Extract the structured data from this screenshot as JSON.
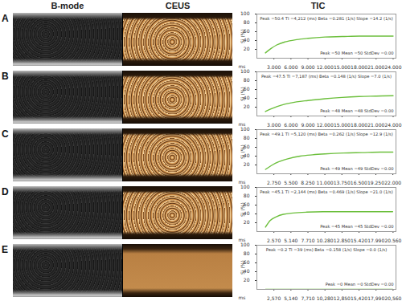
{
  "figure": {
    "columns": [
      "B-mode",
      "CEUS",
      "TIC"
    ],
    "panels": [
      "A",
      "B",
      "C",
      "D",
      "E"
    ]
  },
  "chart_data": [
    {
      "type": "line",
      "title": "Peak =50.4 TI =4,212 (ms) Beta =0.281 (1/s) Slope =14.2 (1/s)",
      "annotations": [
        "Peak =50 Mean =50 StdDev =0.00"
      ],
      "x_label": "ms",
      "y_label": "Si (%)",
      "x": [
        1500,
        2500,
        3500,
        5000,
        7000,
        9000,
        12000,
        15000,
        18000,
        21000,
        24000
      ],
      "series": [
        {
          "name": "TIC",
          "color": "#6cbf3c",
          "values": [
            12,
            22,
            30,
            37,
            42,
            45,
            48,
            49,
            50,
            50,
            50
          ]
        }
      ],
      "xlim": [
        0,
        24500
      ],
      "xticks": [
        {
          "value": 3000,
          "label": "3,000"
        },
        {
          "value": 6000,
          "label": "6,000"
        },
        {
          "value": 9000,
          "label": "9,000"
        },
        {
          "value": 12000,
          "label": "12,000"
        },
        {
          "value": 15000,
          "label": "15,000"
        },
        {
          "value": 18000,
          "label": "18,000"
        },
        {
          "value": 21000,
          "label": "21,000"
        },
        {
          "value": 24000,
          "label": "24,000"
        }
      ],
      "ylim": [
        0,
        100
      ],
      "yticks": [
        20,
        40,
        60,
        80,
        100
      ],
      "grid": false
    },
    {
      "type": "line",
      "title": "Peak =47.5 TI =7,187 (ms) Beta =0.148 (1/s) Slope =7.0 (1/s)",
      "annotations": [
        "Peak =48 Mean =48 StdDev =0.00"
      ],
      "x_label": "ms",
      "y_label": "Si (%)",
      "x": [
        1500,
        2500,
        3500,
        5000,
        7000,
        9000,
        12000,
        15000,
        18000,
        21000,
        24000
      ],
      "series": [
        {
          "name": "TIC",
          "color": "#6cbf3c",
          "values": [
            10,
            16,
            21,
            27,
            32,
            35,
            39,
            42,
            44,
            45,
            46
          ]
        }
      ],
      "xlim": [
        0,
        24500
      ],
      "xticks": [
        {
          "value": 3000,
          "label": "3,000"
        },
        {
          "value": 6000,
          "label": "6,000"
        },
        {
          "value": 9000,
          "label": "9,000"
        },
        {
          "value": 12000,
          "label": "12,000"
        },
        {
          "value": 15000,
          "label": "15,000"
        },
        {
          "value": 18000,
          "label": "18,000"
        },
        {
          "value": 21000,
          "label": "21,000"
        },
        {
          "value": 24000,
          "label": "24,000"
        }
      ],
      "ylim": [
        0,
        100
      ],
      "yticks": [
        20,
        40,
        60,
        80,
        100
      ],
      "grid": false
    },
    {
      "type": "line",
      "title": "Peak =49.1 TI =5,120 (ms) Beta =0.262 (1/s) Slope =12.9 (1/s)",
      "annotations": [
        "Peak =49 Mean =49 StdDev =0.00"
      ],
      "x_label": "ms",
      "y_label": "Si (%)",
      "x": [
        1400,
        2500,
        3500,
        5000,
        7000,
        9000,
        11000,
        14000,
        17000,
        20000,
        22000
      ],
      "series": [
        {
          "name": "TIC",
          "color": "#6cbf3c",
          "values": [
            10,
            20,
            27,
            34,
            40,
            43,
            45,
            47,
            48,
            49,
            49
          ]
        }
      ],
      "xlim": [
        0,
        22500
      ],
      "xticks": [
        {
          "value": 2750,
          "label": "2,750"
        },
        {
          "value": 5500,
          "label": "5,500"
        },
        {
          "value": 8250,
          "label": "8,250"
        },
        {
          "value": 11000,
          "label": "11,000"
        },
        {
          "value": 13750,
          "label": "13,750"
        },
        {
          "value": 16500,
          "label": "16,500"
        },
        {
          "value": 19250,
          "label": "19,250"
        },
        {
          "value": 22000,
          "label": "22,000"
        }
      ],
      "ylim": [
        0,
        100
      ],
      "yticks": [
        20,
        40,
        60,
        80,
        100
      ],
      "grid": false
    },
    {
      "type": "line",
      "title": "Peak =45.1 TI =2,144 (ms) Beta =0.469 (1/s) Slope =21.0 (1/s)",
      "annotations": [
        "Peak =45 Mean =45 StdDev =0.00"
      ],
      "x_label": "ms",
      "y_label": "Si (%)",
      "x": [
        1300,
        2000,
        3000,
        4000,
        5500,
        7500,
        10000,
        13000,
        16000,
        19000,
        20500
      ],
      "series": [
        {
          "name": "TIC",
          "color": "#6cbf3c",
          "values": [
            10,
            25,
            34,
            39,
            42,
            44,
            45,
            45,
            45,
            45,
            45
          ]
        }
      ],
      "xlim": [
        0,
        21000
      ],
      "xticks": [
        {
          "value": 2570,
          "label": "2,570"
        },
        {
          "value": 5140,
          "label": "5,140"
        },
        {
          "value": 7710,
          "label": "7,710"
        },
        {
          "value": 10280,
          "label": "10,280"
        },
        {
          "value": 12850,
          "label": "12,850"
        },
        {
          "value": 15420,
          "label": "15,420"
        },
        {
          "value": 17990,
          "label": "17,990"
        },
        {
          "value": 20560,
          "label": "20,560"
        }
      ],
      "ylim": [
        0,
        100
      ],
      "yticks": [
        20,
        40,
        60,
        80,
        100
      ],
      "grid": false
    },
    {
      "type": "line",
      "title": "Peak =0.2 TI =39 (ms) Beta =0.158 (1/s) Slope =0.0 (1/s)",
      "annotations": [
        "Peak =0 Mean =0 StdDev =0.00"
      ],
      "x_label": "ms",
      "y_label": "Si (%)",
      "x": [
        1300,
        2000,
        3000,
        4000,
        5500,
        7500,
        10000,
        13000,
        16000,
        19000,
        20500
      ],
      "series": [
        {
          "name": "TIC",
          "color": "#6cbf3c",
          "values": [
            0,
            0.1,
            0.1,
            0.2,
            0.2,
            0.2,
            0.2,
            0.2,
            0.2,
            0.2,
            0.2
          ]
        }
      ],
      "xlim": [
        0,
        21000
      ],
      "xticks": [
        {
          "value": 2570,
          "label": "2,570"
        },
        {
          "value": 5140,
          "label": "5,140"
        },
        {
          "value": 7710,
          "label": "7,710"
        },
        {
          "value": 10280,
          "label": "10,280"
        },
        {
          "value": 12850,
          "label": "12,850"
        },
        {
          "value": 15420,
          "label": "15,420"
        },
        {
          "value": 17990,
          "label": "17,990"
        },
        {
          "value": 20560,
          "label": "20,560"
        }
      ],
      "ylim": [
        0,
        100
      ],
      "yticks": [
        20,
        40,
        60,
        80,
        100
      ],
      "grid": false
    }
  ]
}
